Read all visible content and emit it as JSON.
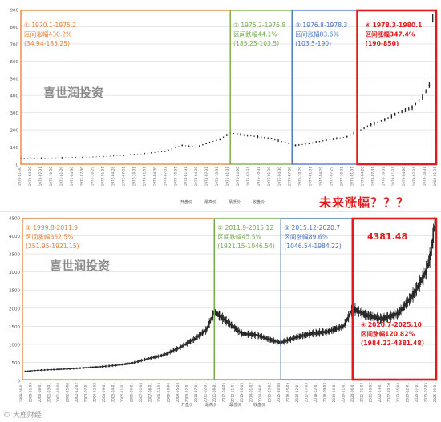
{
  "colors": {
    "orange": "#ed7d31",
    "green": "#70ad47",
    "blue": "#4472c4",
    "red": "#e31a1c",
    "series": "#222222",
    "grid": "#d9d9d9",
    "watermark": "#8c8c8c"
  },
  "top_annotation": "未来涨幅？？？",
  "footer_text": "© 大鹿财经",
  "chart_data": [
    {
      "type": "candlestick",
      "title": "",
      "ylim": [
        0,
        900
      ],
      "yticks": [
        0,
        100,
        200,
        300,
        400,
        500,
        600,
        700,
        800,
        900
      ],
      "x_start": "1970-01",
      "x_end": "1980-02",
      "watermark": "喜世润投资",
      "legend": [
        "开盘价",
        "最高价",
        "最低价",
        "收盘价"
      ],
      "x_tick_labels": [
        "1970-01-30",
        "1970-04-30",
        "1970-07-31",
        "1970-10-30",
        "1971-01-29",
        "1971-04-30",
        "1971-07-30",
        "1971-10-29",
        "1972-01-31",
        "1972-04-28",
        "1972-07-31",
        "1972-10-31",
        "1973-01-31",
        "1973-04-30",
        "1973-07-31",
        "1973-10-31",
        "1974-01-31",
        "1974-04-30",
        "1974-07-31",
        "1974-10-31",
        "1975-01-31",
        "1975-04-30",
        "1975-07-31",
        "1975-10-31",
        "1976-01-30",
        "1976-04-30",
        "1976-07-30",
        "1976-10-29",
        "1977-01-31",
        "1977-04-29",
        "1977-07-29",
        "1977-10-31",
        "1978-01-31",
        "1978-04-28",
        "1978-07-31",
        "1978-10-31",
        "1979-01-31",
        "1979-04-30",
        "1979-07-31",
        "1979-10-31",
        "1980-01-31"
      ],
      "series_points": [
        {
          "x": "1970-01",
          "y": 35
        },
        {
          "x": "1970-07",
          "y": 36
        },
        {
          "x": "1971-01",
          "y": 38
        },
        {
          "x": "1971-07",
          "y": 40
        },
        {
          "x": "1972-01",
          "y": 44
        },
        {
          "x": "1972-07",
          "y": 52
        },
        {
          "x": "1973-01",
          "y": 62
        },
        {
          "x": "1973-07",
          "y": 75
        },
        {
          "x": "1973-12",
          "y": 110
        },
        {
          "x": "1974-04",
          "y": 100
        },
        {
          "x": "1974-07",
          "y": 120
        },
        {
          "x": "1974-11",
          "y": 145
        },
        {
          "x": "1975-02",
          "y": 182
        },
        {
          "x": "1975-06",
          "y": 170
        },
        {
          "x": "1975-10",
          "y": 160
        },
        {
          "x": "1976-02",
          "y": 150
        },
        {
          "x": "1976-06",
          "y": 125
        },
        {
          "x": "1976-09",
          "y": 110
        },
        {
          "x": "1977-01",
          "y": 120
        },
        {
          "x": "1977-06",
          "y": 140
        },
        {
          "x": "1977-12",
          "y": 160
        },
        {
          "x": "1978-03",
          "y": 190
        },
        {
          "x": "1978-07",
          "y": 230
        },
        {
          "x": "1978-11",
          "y": 260
        },
        {
          "x": "1979-03",
          "y": 300
        },
        {
          "x": "1979-07",
          "y": 330
        },
        {
          "x": "1979-10",
          "y": 390
        },
        {
          "x": "1979-12",
          "y": 460
        },
        {
          "x": "1980-01",
          "y": 850
        }
      ],
      "annotations": [
        {
          "color_key": "orange",
          "lines": [
            "① 1970.1-1975.2",
            "区间涨幅430.2%",
            "(34.94-185.25)"
          ],
          "from": "1970-01",
          "to": "1975-02"
        },
        {
          "color_key": "green",
          "lines": [
            "② 1975.2-1976.8",
            "区间跌幅44.1%",
            "(185.25-103.5)"
          ],
          "from": "1975-02",
          "to": "1976-08"
        },
        {
          "color_key": "blue",
          "lines": [
            "③ 1976.8-1978.3",
            "区间涨幅83.6%",
            "(103.5-190)"
          ],
          "from": "1976-08",
          "to": "1978-03"
        },
        {
          "color_key": "red",
          "lines": [
            "④ 1978.3-1980.1",
            "区间涨幅347.4%",
            "(190-850)"
          ],
          "from": "1978-03",
          "to": "1980-02"
        }
      ]
    },
    {
      "type": "candlestick",
      "title": "",
      "ylim": [
        0,
        4500
      ],
      "yticks": [
        0,
        500,
        1000,
        1500,
        2000,
        2500,
        3000,
        3500,
        4000,
        4500
      ],
      "x_start": "1999-06",
      "x_end": "2025-11",
      "watermark": "喜世润投资",
      "legend": [
        "开盘价",
        "最高价",
        "最低价",
        "收盘价"
      ],
      "x_tick_labels": [
        "1999-06-01",
        "2000-01-03",
        "2000-08-01",
        "2001-03-01",
        "2001-10-08",
        "2002-05-08",
        "2002-12-02",
        "2003-07-01",
        "2004-02-02",
        "2004-09-01",
        "2005-04-01",
        "2005-11-01",
        "2006-06-01",
        "2007-01-04",
        "2007-08-01",
        "2008-03-03",
        "2008-10-06",
        "2009-05-04",
        "2009-12-01",
        "2010-07-01",
        "2011-02-01",
        "2011-09-01",
        "2012-04-05",
        "2012-11-01",
        "2013-06-03",
        "2014-01-02",
        "2014-08-01",
        "2015-03-02",
        "2015-10-08",
        "2016-05-03",
        "2016-12-01",
        "2017-07-03",
        "2018-02-01",
        "2018-09-03",
        "2019-04-01",
        "2019-11-01",
        "2020-06-01",
        "2021-01-04",
        "2021-08-02",
        "2022-03-01",
        "2022-10-10",
        "2023-05-04",
        "2023-12-01",
        "2024-07-01",
        "2025-02-05",
        "2025-09-01"
      ],
      "series_points": [
        {
          "x": "1999-08",
          "y": 252
        },
        {
          "x": "2000-06",
          "y": 280
        },
        {
          "x": "2001-06",
          "y": 300
        },
        {
          "x": "2002-06",
          "y": 320
        },
        {
          "x": "2003-06",
          "y": 350
        },
        {
          "x": "2004-06",
          "y": 380
        },
        {
          "x": "2005-06",
          "y": 420
        },
        {
          "x": "2006-06",
          "y": 480
        },
        {
          "x": "2007-06",
          "y": 600
        },
        {
          "x": "2008-06",
          "y": 700
        },
        {
          "x": "2009-06",
          "y": 900
        },
        {
          "x": "2010-06",
          "y": 1150
        },
        {
          "x": "2011-03",
          "y": 1400
        },
        {
          "x": "2011-09",
          "y": 1900
        },
        {
          "x": "2012-06",
          "y": 1650
        },
        {
          "x": "2013-06",
          "y": 1300
        },
        {
          "x": "2014-06",
          "y": 1250
        },
        {
          "x": "2015-06",
          "y": 1100
        },
        {
          "x": "2015-12",
          "y": 1047
        },
        {
          "x": "2016-12",
          "y": 1200
        },
        {
          "x": "2017-12",
          "y": 1300
        },
        {
          "x": "2018-12",
          "y": 1350
        },
        {
          "x": "2019-12",
          "y": 1500
        },
        {
          "x": "2020-07",
          "y": 1984
        },
        {
          "x": "2021-06",
          "y": 1800
        },
        {
          "x": "2022-06",
          "y": 1700
        },
        {
          "x": "2023-06",
          "y": 1850
        },
        {
          "x": "2024-06",
          "y": 2400
        },
        {
          "x": "2025-03",
          "y": 3000
        },
        {
          "x": "2025-07",
          "y": 3500
        },
        {
          "x": "2025-10",
          "y": 4381
        }
      ],
      "peak_label": "4381.48",
      "annotations": [
        {
          "color_key": "orange",
          "lines": [
            "① 1999.8-2011.9",
            "区间涨幅662.5%",
            "(251.95-1921.15)"
          ],
          "from": "1999-06",
          "to": "2011-09"
        },
        {
          "color_key": "green",
          "lines": [
            "② 2011.9-2015.12",
            "区间跌幅45.5%",
            "(1921.15-1046.54)"
          ],
          "from": "2011-09",
          "to": "2015-12"
        },
        {
          "color_key": "blue",
          "lines": [
            "③ 2015.12-2020.7",
            "区间涨幅89.6%",
            "(1046.54-1984.22)"
          ],
          "from": "2015-12",
          "to": "2020-07"
        },
        {
          "color_key": "red",
          "lines": [
            "④ 2020.7-2025.10",
            "区间涨幅120.82%",
            "(1984.22-4381.48)"
          ],
          "from": "2020-07",
          "to": "2025-11"
        }
      ]
    }
  ]
}
